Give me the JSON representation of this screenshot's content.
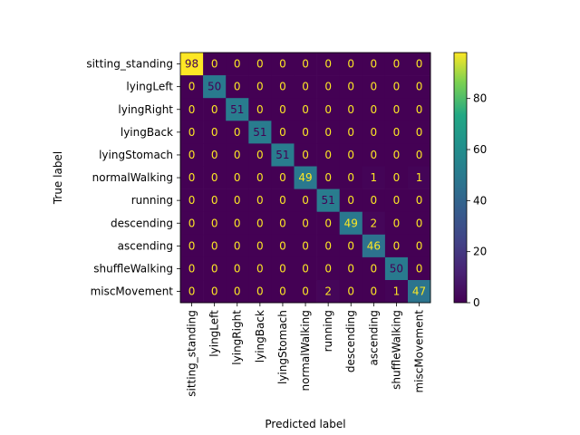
{
  "chart_data": {
    "type": "heatmap",
    "title": "",
    "xlabel": "Predicted label",
    "ylabel": "True label",
    "labels": [
      "sitting_standing",
      "lyingLeft",
      "lyingRight",
      "lyingBack",
      "lyingStomach",
      "normalWalking",
      "running",
      "descending",
      "ascending",
      "shuffleWalking",
      "miscMovement"
    ],
    "matrix": [
      [
        98,
        0,
        0,
        0,
        0,
        0,
        0,
        0,
        0,
        0,
        0
      ],
      [
        0,
        50,
        0,
        0,
        0,
        0,
        0,
        0,
        0,
        0,
        0
      ],
      [
        0,
        0,
        51,
        0,
        0,
        0,
        0,
        0,
        0,
        0,
        0
      ],
      [
        0,
        0,
        0,
        51,
        0,
        0,
        0,
        0,
        0,
        0,
        0
      ],
      [
        0,
        0,
        0,
        0,
        51,
        0,
        0,
        0,
        0,
        0,
        0
      ],
      [
        0,
        0,
        0,
        0,
        0,
        49,
        0,
        0,
        1,
        0,
        1
      ],
      [
        0,
        0,
        0,
        0,
        0,
        0,
        51,
        0,
        0,
        0,
        0
      ],
      [
        0,
        0,
        0,
        0,
        0,
        0,
        0,
        49,
        2,
        0,
        0
      ],
      [
        0,
        0,
        0,
        0,
        0,
        0,
        0,
        0,
        46,
        0,
        0
      ],
      [
        0,
        0,
        0,
        0,
        0,
        0,
        0,
        0,
        0,
        50,
        0
      ],
      [
        0,
        0,
        0,
        0,
        0,
        0,
        2,
        0,
        0,
        1,
        47
      ]
    ],
    "colorbar": {
      "colormap": "viridis",
      "vmin": 0,
      "vmax": 98,
      "ticks": [
        0,
        20,
        40,
        60,
        80
      ]
    },
    "grid": false
  }
}
